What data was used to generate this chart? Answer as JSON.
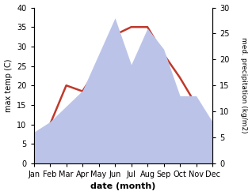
{
  "months": [
    "Jan",
    "Feb",
    "Mar",
    "Apr",
    "May",
    "Jun",
    "Jul",
    "Aug",
    "Sep",
    "Oct",
    "Nov",
    "Dec"
  ],
  "temperature": [
    5,
    10,
    20,
    18.5,
    25,
    33,
    35,
    35,
    28,
    22,
    15,
    10
  ],
  "precipitation": [
    6,
    8,
    11,
    14,
    21,
    28,
    19,
    26,
    22,
    13,
    13,
    8
  ],
  "temp_color": "#c0392b",
  "precip_fill_color": "#bbc4e8",
  "ylabel_left": "max temp (C)",
  "ylabel_right": "med. precipitation (kg/m2)",
  "xlabel": "date (month)",
  "ylim_left": [
    0,
    40
  ],
  "ylim_right": [
    0,
    30
  ],
  "bg_color": "#ffffff"
}
